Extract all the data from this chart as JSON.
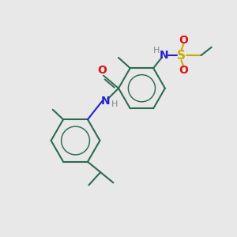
{
  "bg_color": "#e8e8e8",
  "bond_color": "#2d6a50",
  "bond_width": 1.5,
  "n_color": "#2222cc",
  "o_color": "#dd1111",
  "s_color": "#ccaa00",
  "h_color": "#888888",
  "text_fontsize": 9,
  "figsize": [
    3.0,
    3.0
  ],
  "dpi": 100,
  "xlim": [
    0,
    10
  ],
  "ylim": [
    0,
    10
  ]
}
